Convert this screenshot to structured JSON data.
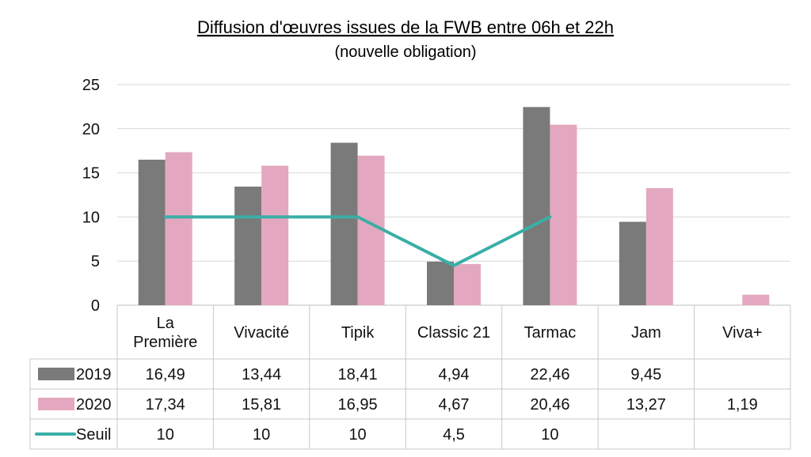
{
  "chart_data": {
    "type": "bar",
    "title": "Diffusion d'œuvres issues de la FWB entre 06h et 22h",
    "subtitle": "(nouvelle obligation)",
    "categories": [
      [
        "La",
        "Première"
      ],
      [
        "Vivacité"
      ],
      [
        "Tipik"
      ],
      [
        "Classic 21"
      ],
      [
        "Tarmac"
      ],
      [
        "Jam"
      ],
      [
        "Viva+"
      ]
    ],
    "ylim": [
      0,
      25
    ],
    "yticks": [
      0,
      5,
      10,
      15,
      20,
      25
    ],
    "grid": true,
    "legend": "data-table",
    "series": [
      {
        "name": "2019",
        "kind": "bar",
        "color": "#7a7a7a",
        "values": [
          16.49,
          13.44,
          18.41,
          4.94,
          22.46,
          9.45,
          null
        ],
        "labels": [
          "16,49",
          "13,44",
          "18,41",
          "4,94",
          "22,46",
          "9,45",
          ""
        ]
      },
      {
        "name": "2020",
        "kind": "bar",
        "color": "#e3a8bf",
        "values": [
          17.34,
          15.81,
          16.95,
          4.67,
          20.46,
          13.27,
          1.19
        ],
        "labels": [
          "17,34",
          "15,81",
          "16,95",
          "4,67",
          "20,46",
          "13,27",
          "1,19"
        ]
      },
      {
        "name": "Seuil",
        "kind": "line",
        "color": "#3aaea6",
        "values": [
          10,
          10,
          10,
          4.5,
          10,
          null,
          null
        ],
        "labels": [
          "10",
          "10",
          "10",
          "4,5",
          "10",
          "",
          ""
        ]
      }
    ]
  }
}
